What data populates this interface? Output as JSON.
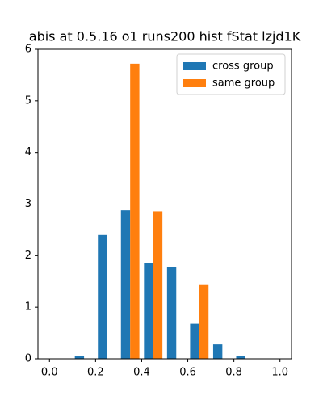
{
  "chart_data": {
    "type": "histogram",
    "title": "abis at 0.5.16 o1 runs200 hist fStat lzjd1K",
    "bins": [
      0,
      0.1,
      0.2,
      0.3,
      0.4,
      0.5,
      0.6,
      0.7,
      0.8,
      0.9,
      1.0
    ],
    "series": [
      {
        "name": "cross group",
        "color": "#1f77b4",
        "values": [
          0,
          0.05,
          2.4,
          2.88,
          1.86,
          1.78,
          0.68,
          0.28,
          0.05,
          0
        ]
      },
      {
        "name": "same group",
        "color": "#ff7f0e",
        "values": [
          0,
          0,
          0,
          5.72,
          2.86,
          0,
          1.43,
          0,
          0,
          0
        ]
      }
    ],
    "xlim": [
      -0.05,
      1.05
    ],
    "ylim": [
      0,
      6
    ],
    "xticks": [
      {
        "value": 0,
        "label": "0.0"
      },
      0.2,
      0.4,
      0.6,
      0.8,
      {
        "value": 1,
        "label": "1.0"
      }
    ],
    "yticks": [
      0,
      1,
      2,
      3,
      4,
      5,
      6
    ],
    "legend": "upper right"
  }
}
